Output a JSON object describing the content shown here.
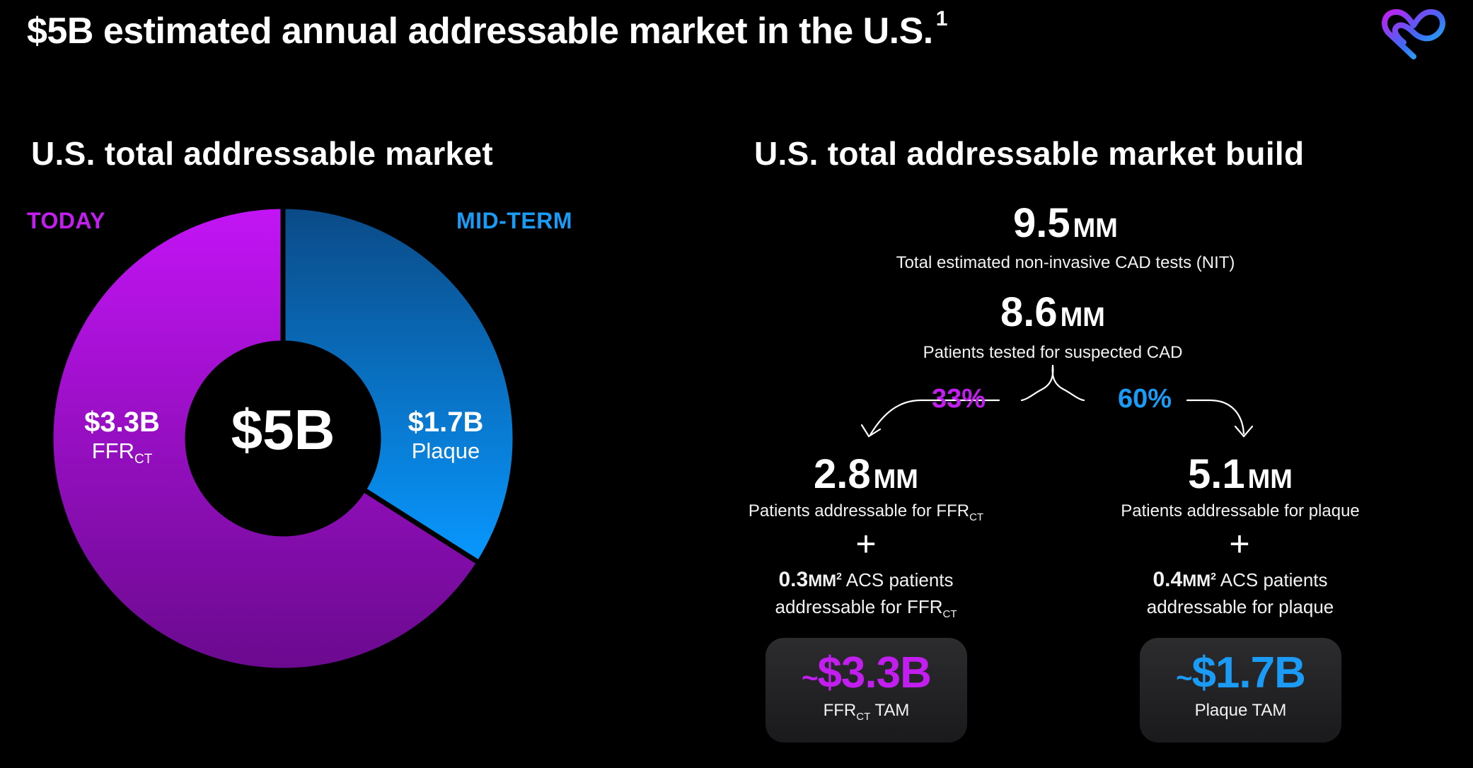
{
  "header": {
    "title": "$5B estimated annual addressable market in the U.S.",
    "footnote": "1"
  },
  "left": {
    "heading": "U.S. total addressable market",
    "tag_today": "TODAY",
    "tag_midterm": "MID-TERM",
    "center_label": "$5B",
    "slice_ffr": {
      "value": "$3.3B",
      "label": "FFR",
      "label_sub": "CT"
    },
    "slice_plaque": {
      "value": "$1.7B",
      "label": "Plaque"
    }
  },
  "right": {
    "heading": "U.S. total addressable market build",
    "nit": {
      "value": "9.5",
      "unit": "MM",
      "caption": "Total estimated non-invasive CAD tests (NIT)"
    },
    "suspected": {
      "value": "8.6",
      "unit": "MM",
      "caption": "Patients tested for suspected CAD"
    },
    "pct_ffr": "33%",
    "pct_plaque": "60%",
    "ffr": {
      "value": "2.8",
      "unit": "MM",
      "caption": "Patients addressable for FFR",
      "caption_sub": "CT",
      "plus": "+",
      "acs_value": "0.3",
      "acs_unit": "MM",
      "acs_sup": "2",
      "acs_text": "ACS patients",
      "acs_line2": "addressable for FFR",
      "acs_line2_sub": "CT",
      "tam_tilde": "~",
      "tam_value": "$3.3B",
      "tam_label": "FFR",
      "tam_label_sub": "CT",
      "tam_label_suffix": "TAM"
    },
    "plaque": {
      "value": "5.1",
      "unit": "MM",
      "caption": "Patients addressable for plaque",
      "plus": "+",
      "acs_value": "0.4",
      "acs_unit": "MM",
      "acs_sup": "2",
      "acs_text": "ACS patients",
      "acs_line2": "addressable for plaque",
      "tam_tilde": "~",
      "tam_value": "$1.7B",
      "tam_label": "Plaque TAM"
    }
  },
  "colors": {
    "magenta": "#c21ef0",
    "blue": "#1a9bf5",
    "donut_ffr_top": "#c314f5",
    "donut_ffr_bottom": "#6a0a8e",
    "donut_plaque_top": "#0a4a86",
    "donut_plaque_bottom": "#0898ff"
  },
  "chart_data": {
    "type": "pie",
    "title": "U.S. total addressable market",
    "categories": [
      "FFRCT",
      "Plaque"
    ],
    "values": [
      3.3,
      1.7
    ],
    "unit": "$B",
    "total": 5.0,
    "legend": [
      "TODAY",
      "MID-TERM"
    ]
  }
}
